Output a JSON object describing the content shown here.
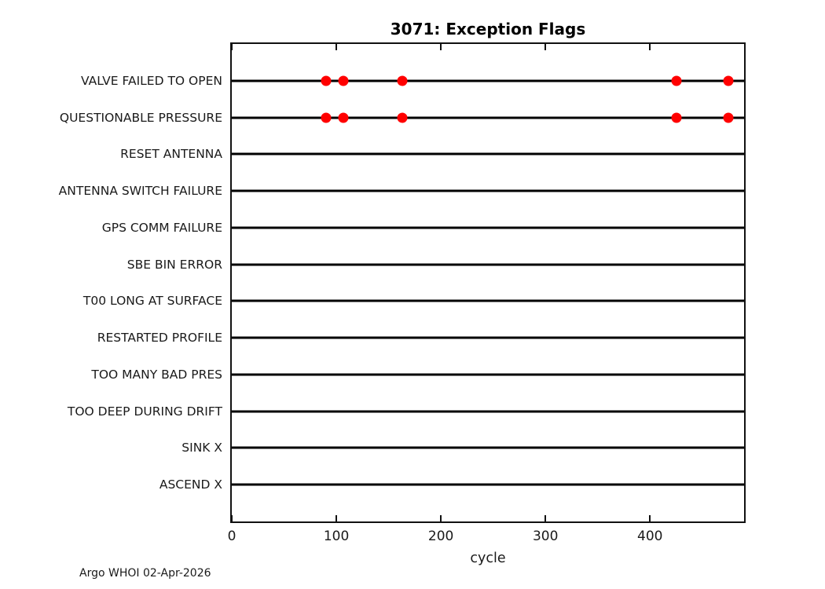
{
  "chart_data": {
    "type": "scatter",
    "title": "3071: Exception Flags",
    "xlabel": "cycle",
    "xlim": [
      0,
      490
    ],
    "xticks": [
      0,
      100,
      200,
      300,
      400
    ],
    "grid": false,
    "legend": "none",
    "categories": [
      "VALVE FAILED TO OPEN",
      "QUESTIONABLE PRESSURE",
      "RESET ANTENNA",
      "ANTENNA SWITCH FAILURE",
      "GPS COMM FAILURE",
      "SBE BIN ERROR",
      "T00 LONG AT SURFACE",
      "RESTARTED PROFILE",
      "TOO MANY BAD PRES",
      "TOO DEEP DURING DRIFT",
      "SINK X",
      "ASCEND X"
    ],
    "series": [
      {
        "name": "VALVE FAILED TO OPEN",
        "x": [
          90,
          107,
          163,
          425,
          475
        ]
      },
      {
        "name": "QUESTIONABLE PRESSURE",
        "x": [
          90,
          107,
          163,
          425,
          475
        ]
      }
    ],
    "marker_color": "#ff0000",
    "row_line_color": "#000000",
    "axis_color": "#111111"
  },
  "footer": {
    "text": "Argo WHOI 02-Apr-2026"
  }
}
